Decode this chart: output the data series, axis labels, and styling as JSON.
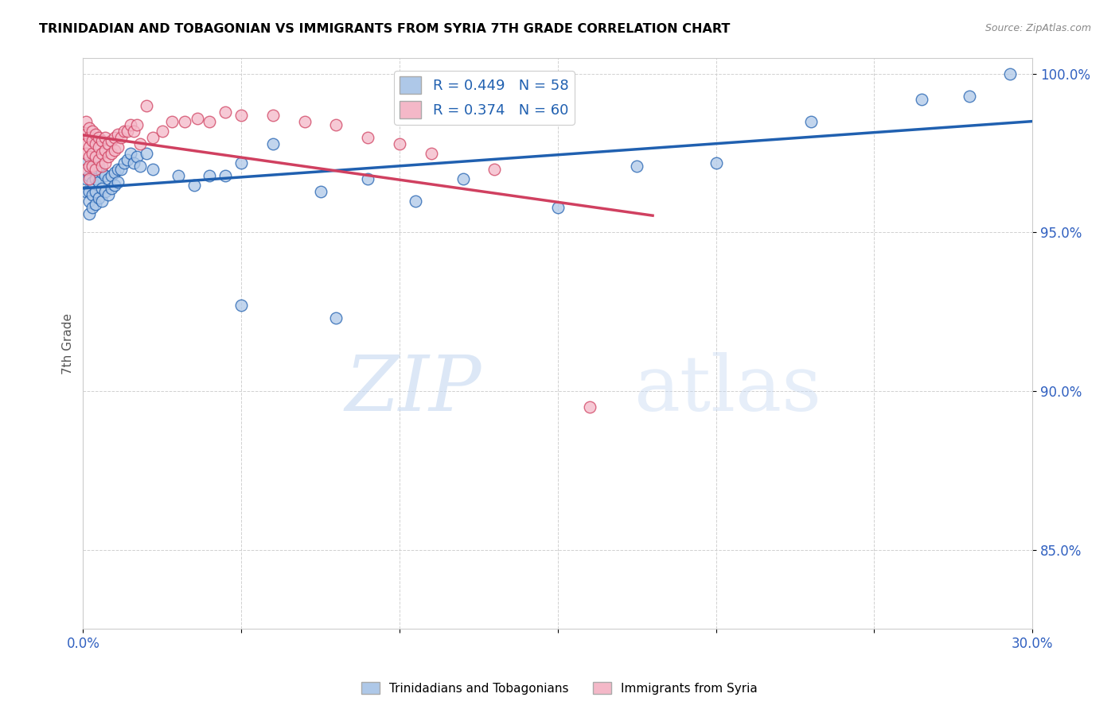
{
  "title": "TRINIDADIAN AND TOBAGONIAN VS IMMIGRANTS FROM SYRIA 7TH GRADE CORRELATION CHART",
  "source": "Source: ZipAtlas.com",
  "ylabel": "7th Grade",
  "x_min": 0.0,
  "x_max": 0.3,
  "y_min": 0.825,
  "y_max": 1.005,
  "x_ticks": [
    0.0,
    0.05,
    0.1,
    0.15,
    0.2,
    0.25,
    0.3
  ],
  "x_tick_labels": [
    "0.0%",
    "",
    "",
    "",
    "",
    "",
    "30.0%"
  ],
  "y_ticks": [
    0.85,
    0.9,
    0.95,
    1.0
  ],
  "y_tick_labels": [
    "85.0%",
    "90.0%",
    "95.0%",
    "100.0%"
  ],
  "legend_label1": "Trinidadians and Tobagonians",
  "legend_label2": "Immigrants from Syria",
  "R1": 0.449,
  "N1": 58,
  "R2": 0.374,
  "N2": 60,
  "color_blue": "#aec8e8",
  "color_pink": "#f4b8c8",
  "line_color_blue": "#2060b0",
  "line_color_pink": "#d04060",
  "watermark_zip": "ZIP",
  "watermark_atlas": "atlas",
  "blue_x": [
    0.001,
    0.001,
    0.001,
    0.002,
    0.002,
    0.002,
    0.002,
    0.003,
    0.003,
    0.003,
    0.003,
    0.004,
    0.004,
    0.004,
    0.005,
    0.005,
    0.005,
    0.006,
    0.006,
    0.006,
    0.007,
    0.007,
    0.008,
    0.008,
    0.009,
    0.009,
    0.01,
    0.01,
    0.011,
    0.011,
    0.012,
    0.013,
    0.014,
    0.015,
    0.016,
    0.017,
    0.018,
    0.02,
    0.022,
    0.03,
    0.035,
    0.04,
    0.045,
    0.05,
    0.06,
    0.075,
    0.09,
    0.105,
    0.12,
    0.15,
    0.175,
    0.2,
    0.23,
    0.265,
    0.28,
    0.293,
    0.05,
    0.08
  ],
  "blue_y": [
    0.972,
    0.967,
    0.963,
    0.968,
    0.963,
    0.96,
    0.956,
    0.97,
    0.966,
    0.962,
    0.958,
    0.967,
    0.963,
    0.959,
    0.971,
    0.966,
    0.961,
    0.969,
    0.964,
    0.96,
    0.968,
    0.963,
    0.967,
    0.962,
    0.968,
    0.964,
    0.969,
    0.965,
    0.97,
    0.966,
    0.97,
    0.972,
    0.973,
    0.975,
    0.972,
    0.974,
    0.971,
    0.975,
    0.97,
    0.968,
    0.965,
    0.968,
    0.968,
    0.972,
    0.978,
    0.963,
    0.967,
    0.96,
    0.967,
    0.958,
    0.971,
    0.972,
    0.985,
    0.992,
    0.993,
    1.0,
    0.927,
    0.923
  ],
  "pink_x": [
    0.001,
    0.001,
    0.001,
    0.001,
    0.001,
    0.002,
    0.002,
    0.002,
    0.002,
    0.002,
    0.002,
    0.003,
    0.003,
    0.003,
    0.003,
    0.004,
    0.004,
    0.004,
    0.004,
    0.005,
    0.005,
    0.005,
    0.006,
    0.006,
    0.006,
    0.007,
    0.007,
    0.007,
    0.008,
    0.008,
    0.009,
    0.009,
    0.01,
    0.01,
    0.011,
    0.011,
    0.012,
    0.013,
    0.014,
    0.015,
    0.016,
    0.017,
    0.018,
    0.02,
    0.022,
    0.025,
    0.028,
    0.032,
    0.036,
    0.04,
    0.045,
    0.05,
    0.06,
    0.07,
    0.08,
    0.09,
    0.1,
    0.11,
    0.13,
    0.16
  ],
  "pink_y": [
    0.985,
    0.981,
    0.978,
    0.975,
    0.97,
    0.983,
    0.98,
    0.977,
    0.974,
    0.971,
    0.967,
    0.982,
    0.979,
    0.975,
    0.971,
    0.981,
    0.978,
    0.974,
    0.97,
    0.98,
    0.977,
    0.973,
    0.979,
    0.975,
    0.971,
    0.98,
    0.976,
    0.972,
    0.978,
    0.974,
    0.979,
    0.975,
    0.98,
    0.976,
    0.981,
    0.977,
    0.98,
    0.982,
    0.982,
    0.984,
    0.982,
    0.984,
    0.978,
    0.99,
    0.98,
    0.982,
    0.985,
    0.985,
    0.986,
    0.985,
    0.988,
    0.987,
    0.987,
    0.985,
    0.984,
    0.98,
    0.978,
    0.975,
    0.97,
    0.895
  ]
}
